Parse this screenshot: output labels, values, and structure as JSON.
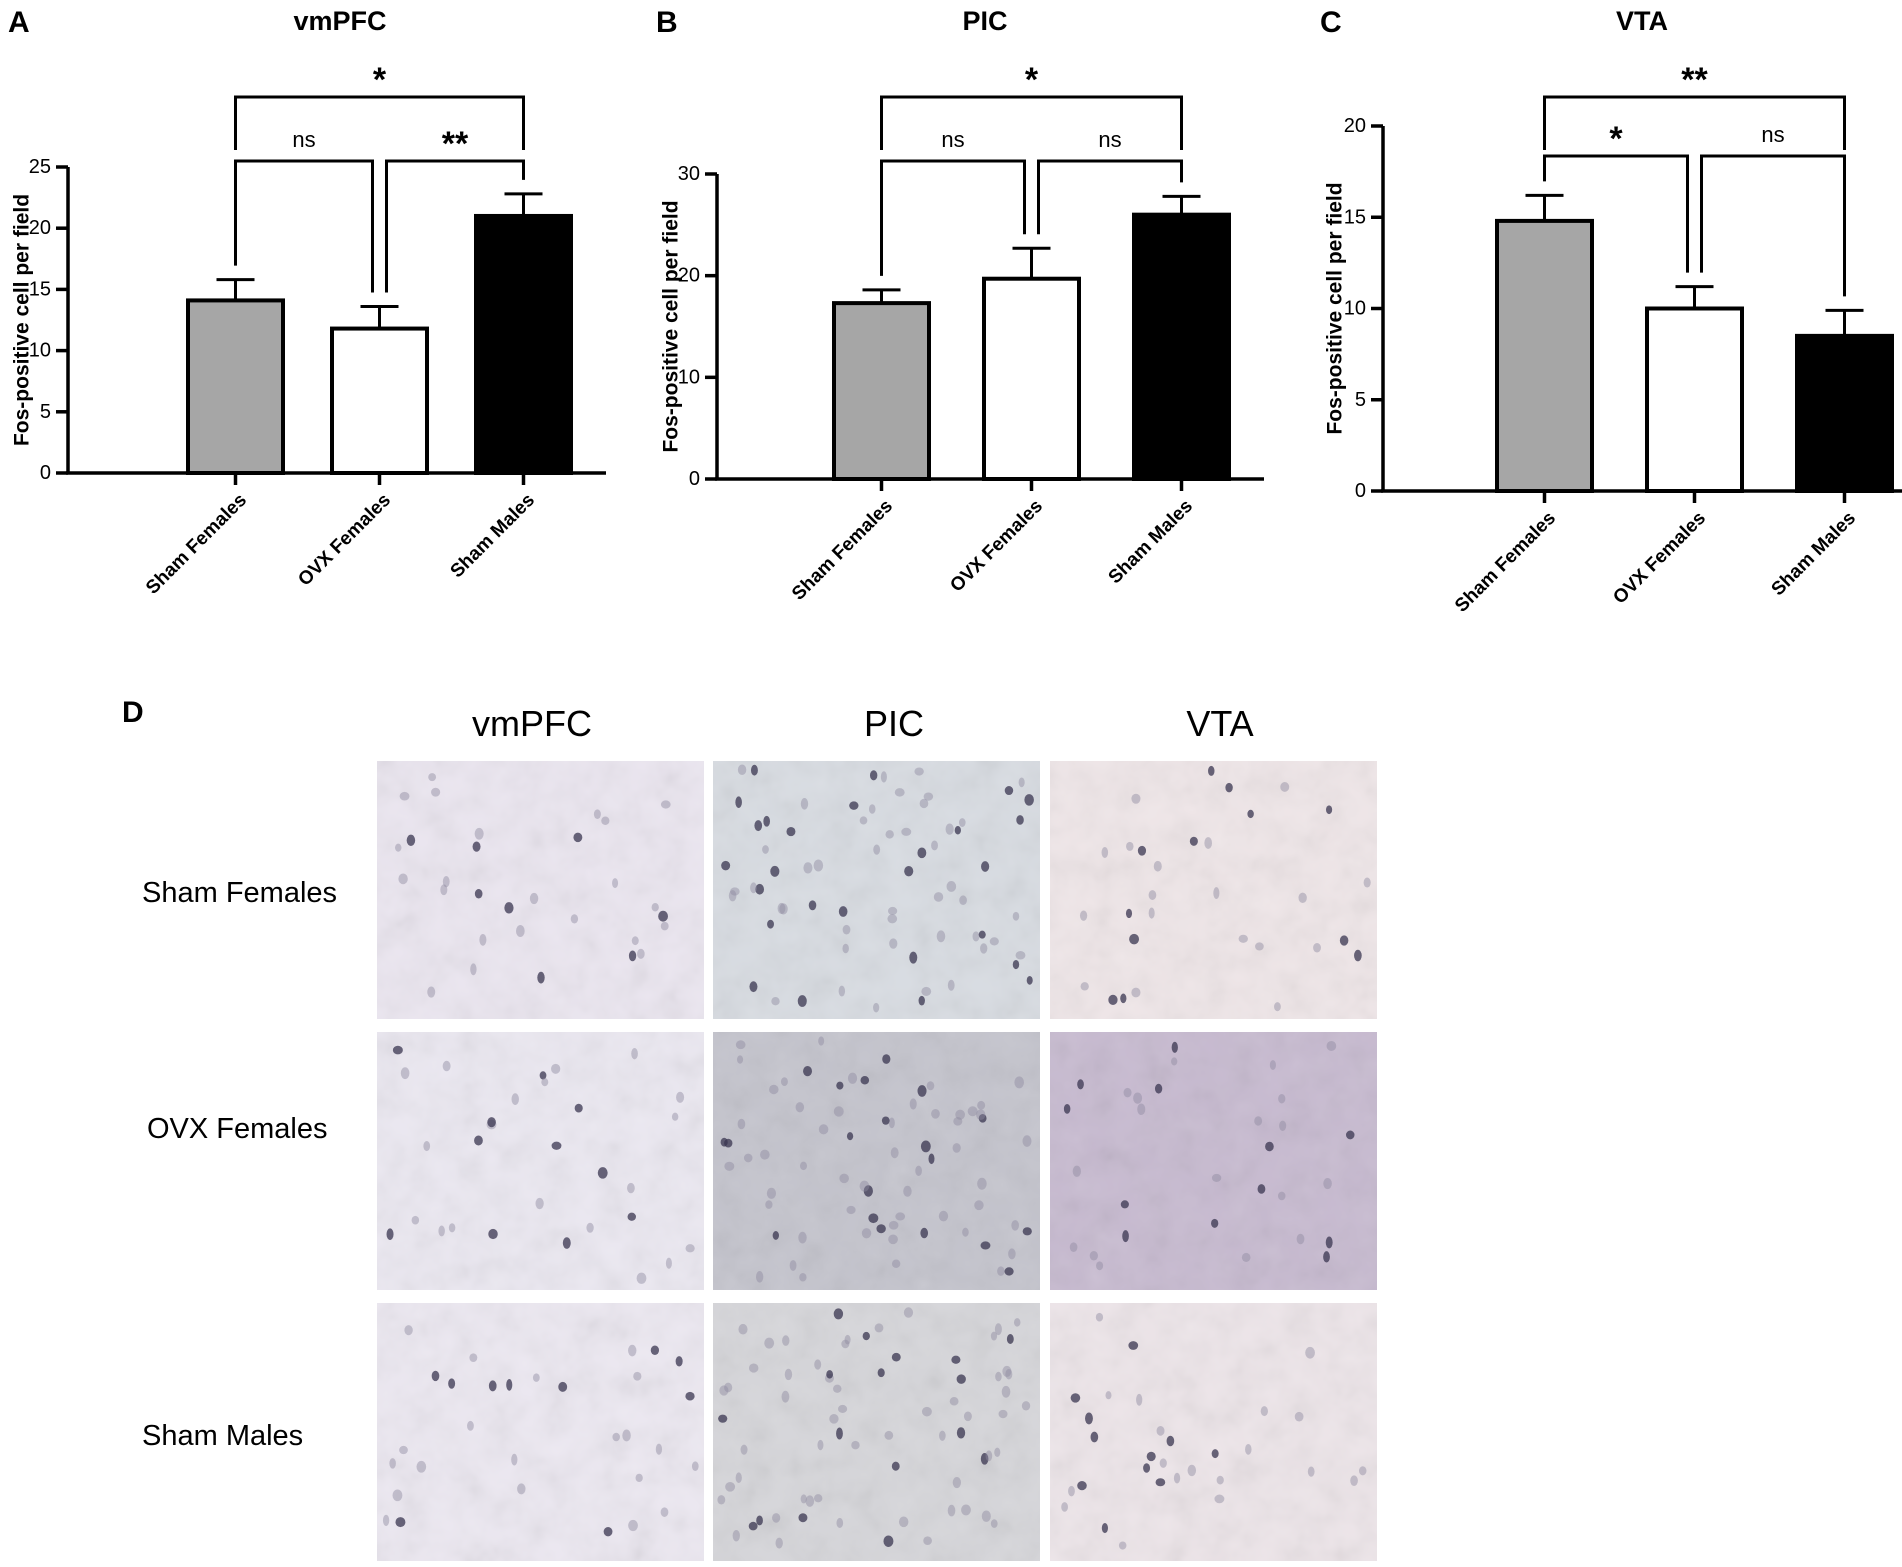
{
  "chart_data": [
    {
      "panel": "A",
      "type": "bar",
      "title": "vmPFC",
      "ylabel": "Fos-positive cell per field",
      "xlabel": "",
      "ylim": [
        0,
        25
      ],
      "yticks": [
        0,
        5,
        10,
        15,
        20,
        25
      ],
      "categories": [
        "Sham Females",
        "OVX Females",
        "Sham Males"
      ],
      "values": [
        14.1,
        11.8,
        21.0
      ],
      "errors": [
        1.7,
        1.8,
        1.8
      ],
      "colors": [
        "#a6a6a6",
        "#ffffff",
        "#000000"
      ],
      "comparisons": [
        {
          "from": 0,
          "to": 1,
          "label": "ns"
        },
        {
          "from": 1,
          "to": 2,
          "label": "**"
        },
        {
          "from": 0,
          "to": 2,
          "label": "*"
        }
      ]
    },
    {
      "panel": "B",
      "type": "bar",
      "title": "PIC",
      "ylabel": "Fos-positive cell per field",
      "xlabel": "",
      "ylim": [
        0,
        30
      ],
      "yticks": [
        0,
        10,
        20,
        30
      ],
      "categories": [
        "Sham Females",
        "OVX Females",
        "Sham Males"
      ],
      "values": [
        17.3,
        19.7,
        26.0
      ],
      "errors": [
        1.3,
        3.0,
        1.8
      ],
      "colors": [
        "#a6a6a6",
        "#ffffff",
        "#000000"
      ],
      "comparisons": [
        {
          "from": 0,
          "to": 1,
          "label": "ns"
        },
        {
          "from": 1,
          "to": 2,
          "label": "ns"
        },
        {
          "from": 0,
          "to": 2,
          "label": "*"
        }
      ]
    },
    {
      "panel": "C",
      "type": "bar",
      "title": "VTA",
      "ylabel": "Fos-positive cell per field",
      "xlabel": "",
      "ylim": [
        0,
        20
      ],
      "yticks": [
        0,
        5,
        10,
        15,
        20
      ],
      "categories": [
        "Sham Females",
        "OVX Females",
        "Sham Males"
      ],
      "values": [
        14.8,
        10.0,
        8.5
      ],
      "errors": [
        1.4,
        1.2,
        1.4
      ],
      "colors": [
        "#a6a6a6",
        "#ffffff",
        "#000000"
      ],
      "comparisons": [
        {
          "from": 0,
          "to": 1,
          "label": "*"
        },
        {
          "from": 1,
          "to": 2,
          "label": "ns"
        },
        {
          "from": 0,
          "to": 2,
          "label": "**"
        }
      ]
    }
  ],
  "micrographs": {
    "panel": "D",
    "columns": [
      "vmPFC",
      "PIC",
      "VTA"
    ],
    "rows": [
      "Sham Females",
      "OVX Females",
      "Sham Males"
    ],
    "tint_colors": [
      [
        "#ebe6f0",
        "#d8dce2",
        "#efe6e8"
      ],
      [
        "#ebe8f1",
        "#c4c4cd",
        "#c7bad0"
      ],
      [
        "#ece8f1",
        "#d6d6da",
        "#ede5e9"
      ]
    ]
  }
}
